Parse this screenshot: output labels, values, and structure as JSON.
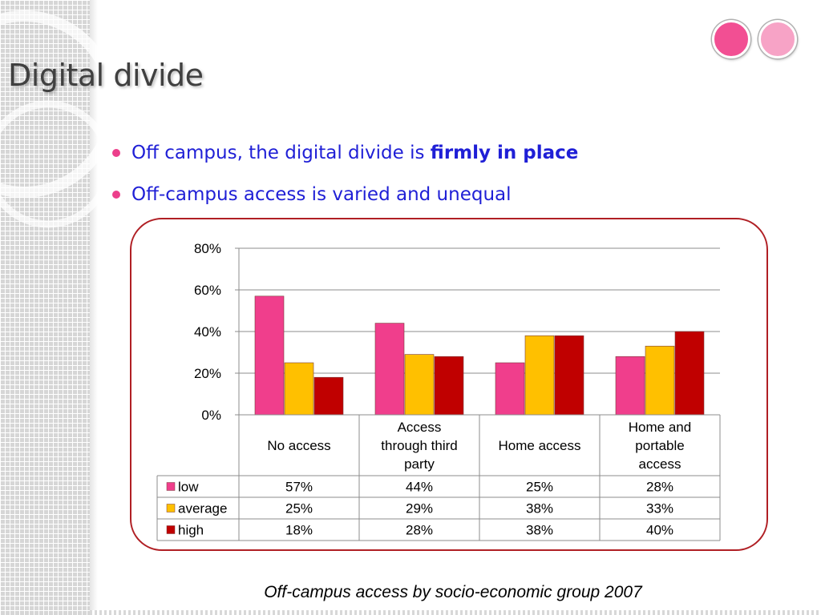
{
  "slide": {
    "title": "Digital divide",
    "bullets": [
      {
        "text": "Off campus, the digital divide is ",
        "emphasis": "firmly in place"
      },
      {
        "text": "Off-campus access is varied and unequal",
        "emphasis": ""
      }
    ],
    "caption": "Off-campus access by socio-economic group 2007",
    "accent_colors": {
      "frame": "#b01f24",
      "bullet": "#ec3f8b",
      "text": "#1f1fd6",
      "dot_dark": "#f24f93",
      "dot_light": "#f7a3c6"
    }
  },
  "chart_data": {
    "type": "bar",
    "categories": [
      [
        "No access"
      ],
      [
        "Access",
        "through third",
        "party"
      ],
      [
        "Home access"
      ],
      [
        "Home and",
        "portable",
        "access"
      ]
    ],
    "series": [
      {
        "name": "low",
        "color": "#f03e8c",
        "values": [
          57,
          44,
          25,
          28
        ]
      },
      {
        "name": "average",
        "color": "#ffc000",
        "values": [
          25,
          29,
          38,
          33
        ]
      },
      {
        "name": "high",
        "color": "#c00000",
        "values": [
          18,
          28,
          38,
          40
        ]
      }
    ],
    "y_ticks": [
      "0%",
      "20%",
      "40%",
      "60%",
      "80%"
    ],
    "ylim": [
      0,
      80
    ],
    "value_suffix": "%",
    "grid": true,
    "legend": "data-table"
  }
}
